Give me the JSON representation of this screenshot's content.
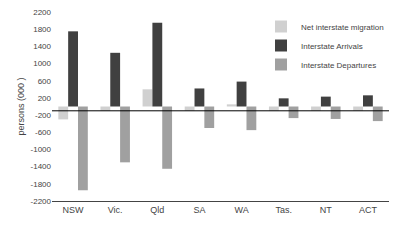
{
  "chart_data": {
    "type": "bar",
    "categories": [
      "NSW",
      "Vic.",
      "Qld",
      "SA",
      "WA",
      "Tas.",
      "NT",
      "ACT"
    ],
    "series": [
      {
        "name": "Net interstate migration",
        "color": "#d0d0d0",
        "values": [
          -300,
          -100,
          400,
          -100,
          50,
          -100,
          -100,
          -100
        ]
      },
      {
        "name": "Interstate Arrivals",
        "color": "#404040",
        "values": [
          1750,
          1250,
          1950,
          420,
          580,
          190,
          230,
          260
        ]
      },
      {
        "name": "Interstate Departures",
        "color": "#a0a0a0",
        "values": [
          -1950,
          -1300,
          -1450,
          -500,
          -550,
          -270,
          -290,
          -340
        ]
      }
    ],
    "ylabel": "persons (000 )",
    "ylim": [
      -2200,
      2200
    ],
    "yticks": [
      -2200,
      -1800,
      -1400,
      -1000,
      -600,
      -200,
      200,
      600,
      1000,
      1400,
      1800,
      2200
    ],
    "hline": -100,
    "grid": false,
    "legend": "upper right"
  }
}
